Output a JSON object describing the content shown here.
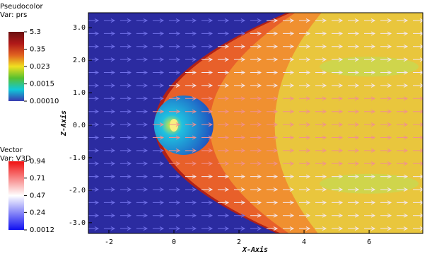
{
  "chart_data": {
    "type": "pseudocolor",
    "xlabel": "X-Axis",
    "ylabel": "Z-Axis",
    "xlim": [
      -2.63,
      7.65
    ],
    "ylim": [
      -3.33,
      3.46
    ],
    "xticks": [
      -2,
      0,
      2,
      4,
      6
    ],
    "yticks": [
      {
        "value": 3,
        "label": "3.0"
      },
      {
        "value": 2,
        "label": "2.0"
      },
      {
        "value": 1,
        "label": "1.0"
      },
      {
        "value": 0,
        "label": "0.0"
      },
      {
        "value": -1,
        "label": "-1.0"
      },
      {
        "value": -2,
        "label": "-2.0"
      },
      {
        "value": -3,
        "label": "-3.0"
      }
    ],
    "legends": [
      {
        "title": "Pseudocolor",
        "variable": "Var: prs",
        "log_scale": true,
        "colors": [
          "#3a3ab0",
          "#10c8d8",
          "#58c030",
          "#f0e020",
          "#e06020",
          "#b01818",
          "#6a1010"
        ],
        "ticks": [
          {
            "value": 5.3,
            "label": "5.3"
          },
          {
            "value": 0.35,
            "label": "0.35"
          },
          {
            "value": 0.023,
            "label": "0.023"
          },
          {
            "value": 0.0015,
            "label": "0.0015"
          },
          {
            "value": 0.0001,
            "label": "0.00010"
          }
        ]
      },
      {
        "title": "Vector",
        "variable": "Var: V3D",
        "log_scale": false,
        "colors": [
          "#1010f0",
          "#ffffff",
          "#f01010"
        ],
        "ticks": [
          0.94,
          0.71,
          0.47,
          0.24,
          0.0012
        ]
      }
    ]
  }
}
